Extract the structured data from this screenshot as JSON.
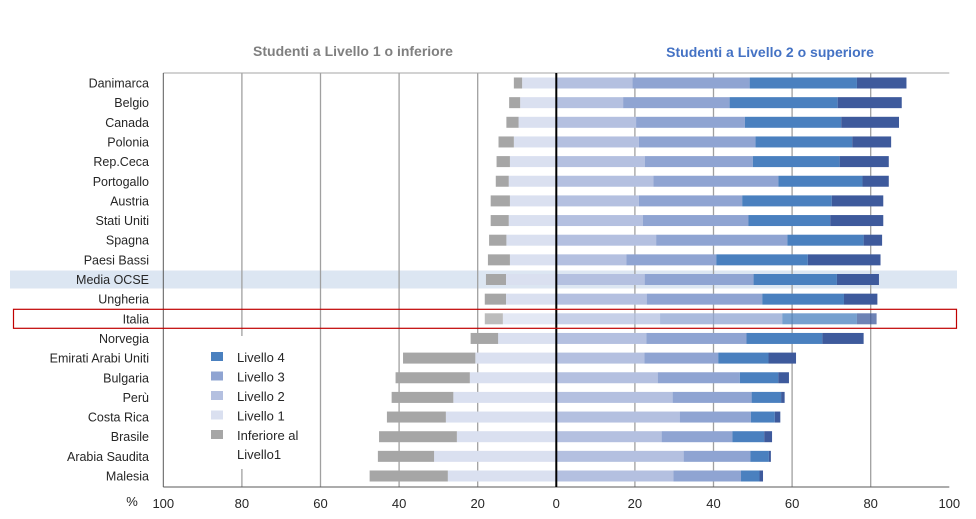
{
  "chart_data": {
    "type": "bar",
    "orientation": "horizontal-diverging-stacked",
    "title_left": "Studenti a Livello 1 o inferiore",
    "title_right": "Studenti a Livello 2 o superiore",
    "xlabel": "%",
    "xlim": [
      -100,
      100
    ],
    "xticks": [
      "100",
      "80",
      "60",
      "40",
      "20",
      "0",
      "20",
      "40",
      "60",
      "80",
      "100"
    ],
    "xtick_values": [
      -100,
      -80,
      -60,
      -40,
      -20,
      0,
      20,
      40,
      60,
      80,
      100
    ],
    "grid": true,
    "legend_position": "bottom-left",
    "highlight_band": "Media OCSE",
    "highlight_box": "Italia",
    "categories": [
      "Danimarca",
      "Belgio",
      "Canada",
      "Polonia",
      "Rep.Ceca",
      "Portogallo",
      "Austria",
      "Stati Uniti",
      "Spagna",
      "Paesi Bassi",
      "Media OCSE",
      "Ungheria",
      "Italia",
      "Norvegia",
      "Emirati Arabi Uniti",
      "Bulgaria",
      "Perù",
      "Costa Rica",
      "Brasile",
      "Arabia Saudita",
      "Malesia"
    ],
    "series": [
      {
        "key": "below",
        "name": "Inferiore al",
        "name2": "Livello1",
        "side": "left",
        "color": "#a6a6a6",
        "values": [
          2.1,
          2.8,
          3.1,
          3.9,
          3.4,
          3.3,
          4.9,
          4.6,
          4.4,
          5.6,
          5.1,
          5.4,
          4.6,
          7.0,
          18.4,
          18.9,
          15.7,
          15.0,
          19.8,
          14.3,
          19.9
        ]
      },
      {
        "key": "l1",
        "name": "Livello 1",
        "side": "left",
        "color": "#dae0f0",
        "values": [
          8.7,
          9.2,
          9.6,
          10.8,
          11.8,
          12.1,
          11.8,
          12.1,
          12.7,
          11.8,
          12.8,
          12.8,
          13.6,
          14.8,
          20.6,
          22.0,
          26.2,
          28.1,
          25.3,
          31.1,
          27.6
        ]
      },
      {
        "key": "l2",
        "name": "Livello 2",
        "side": "right",
        "color": "#b4c0e0",
        "values": [
          19.4,
          17.0,
          20.3,
          21.0,
          22.5,
          24.7,
          21.0,
          22.0,
          25.4,
          17.8,
          22.5,
          23.0,
          26.4,
          22.9,
          22.4,
          25.8,
          29.6,
          31.4,
          26.8,
          32.4,
          29.8
        ]
      },
      {
        "key": "l3",
        "name": "Livello 3",
        "side": "right",
        "color": "#8fa4d2",
        "values": [
          29.8,
          27.1,
          27.7,
          29.7,
          27.5,
          31.8,
          26.3,
          26.9,
          33.4,
          22.9,
          27.7,
          29.4,
          31.1,
          25.5,
          18.8,
          20.9,
          20.1,
          18.1,
          18.0,
          17.0,
          17.2
        ]
      },
      {
        "key": "l4",
        "name": "Livello 4",
        "side": "right",
        "color": "#4a80bf",
        "values": [
          27.3,
          27.5,
          24.5,
          24.6,
          22.1,
          21.4,
          22.8,
          20.8,
          19.4,
          23.3,
          21.2,
          20.8,
          19.0,
          19.3,
          12.8,
          9.8,
          7.5,
          6.1,
          8.1,
          4.7,
          4.7
        ]
      },
      {
        "key": "l5",
        "name": null,
        "side": "right",
        "color": "#3e5a9c",
        "values": [
          12.6,
          16.3,
          14.7,
          9.9,
          12.5,
          6.7,
          13.1,
          13.5,
          4.7,
          18.5,
          10.7,
          8.5,
          5.0,
          10.5,
          7.0,
          2.7,
          0.9,
          1.4,
          2.0,
          0.5,
          0.9
        ]
      }
    ],
    "legend_order": [
      "l4",
      "l3",
      "l2",
      "l1",
      "below"
    ],
    "colors": {
      "title_left": "#7f7f7f",
      "title_right": "#4472c4",
      "band": "#dce6f2",
      "box": "#c00000"
    }
  }
}
